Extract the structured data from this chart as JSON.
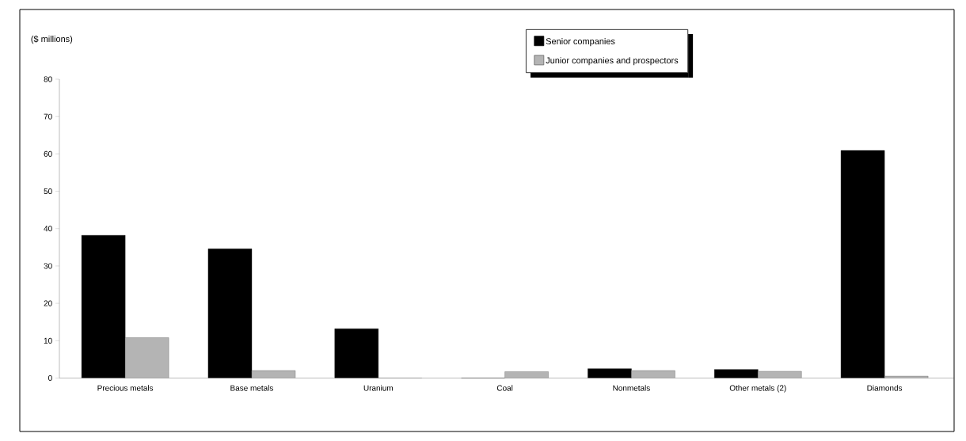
{
  "chart_data": {
    "type": "bar",
    "ylabel": "($ millions)",
    "categories": [
      "Precious metals",
      "Base metals",
      "Uranium",
      "Coal",
      "Nonmetals",
      "Other metals (2)",
      "Diamonds"
    ],
    "series": [
      {
        "name": "Senior companies",
        "color": "#000000",
        "values": [
          38.2,
          34.6,
          13.2,
          0,
          2.5,
          2.3,
          60.9
        ]
      },
      {
        "name": "Junior companies and prospectors",
        "color": "#b4b4b4",
        "values": [
          10.8,
          2,
          0,
          1.7,
          2,
          1.8,
          0.5
        ]
      }
    ],
    "ylim": [
      0,
      80
    ],
    "yticks": [
      0,
      10,
      20,
      30,
      40,
      50,
      60,
      70,
      80
    ],
    "legend": "top",
    "grid": false
  }
}
